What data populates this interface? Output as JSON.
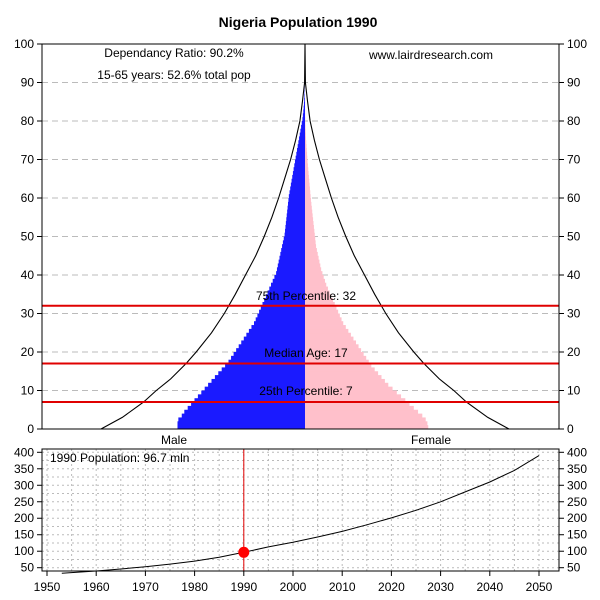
{
  "chart_data": [
    {
      "type": "bar",
      "subtype": "population-pyramid",
      "title": "Nigeria Population 1990",
      "ylim": [
        0,
        100
      ],
      "yticks": [
        0,
        10,
        20,
        30,
        40,
        50,
        60,
        70,
        80,
        90,
        100
      ],
      "xlim": [
        -1.7,
        1.7
      ],
      "grid": true,
      "colors": {
        "male": "#1a1aff",
        "female": "#ffc0cb",
        "lines": "#e00000",
        "outline": "#000000"
      },
      "annotations": {
        "dependency": "Dependancy Ratio: 90.2%",
        "working": "15-65 years: 52.6% total pop",
        "source": "www.lairdresearch.com",
        "p75": "75th Percentile: 32",
        "median": "Median Age: 17",
        "p25": "25th Percentile: 7"
      },
      "percentiles": {
        "p25": 7,
        "median": 17,
        "p75": 32
      },
      "labels": {
        "male": "Male",
        "female": "Female"
      },
      "ages": [
        0,
        1,
        2,
        3,
        4,
        5,
        6,
        7,
        8,
        9,
        10,
        11,
        12,
        13,
        14,
        15,
        16,
        17,
        18,
        19,
        20,
        21,
        22,
        23,
        24,
        25,
        26,
        27,
        28,
        29,
        30,
        31,
        32,
        33,
        34,
        35,
        36,
        37,
        38,
        39,
        40,
        41,
        42,
        43,
        44,
        45,
        46,
        47,
        48,
        49,
        50,
        51,
        52,
        53,
        54,
        55,
        56,
        57,
        58,
        59,
        60,
        61,
        62,
        63,
        64,
        65,
        66,
        67,
        68,
        69,
        70,
        71,
        72,
        73,
        74,
        75,
        76,
        77,
        78,
        79,
        80,
        81,
        82,
        83,
        84,
        85,
        86,
        87,
        88,
        89,
        90
      ],
      "male_pct": [
        1.5,
        1.5,
        1.49,
        1.45,
        1.42,
        1.38,
        1.34,
        1.3,
        1.26,
        1.22,
        1.18,
        1.14,
        1.1,
        1.06,
        1.02,
        0.98,
        0.94,
        0.9,
        0.87,
        0.84,
        0.81,
        0.78,
        0.75,
        0.72,
        0.69,
        0.66,
        0.63,
        0.6,
        0.58,
        0.56,
        0.54,
        0.52,
        0.5,
        0.48,
        0.46,
        0.44,
        0.42,
        0.4,
        0.38,
        0.36,
        0.34,
        0.33,
        0.32,
        0.31,
        0.3,
        0.29,
        0.28,
        0.27,
        0.26,
        0.25,
        0.24,
        0.235,
        0.23,
        0.225,
        0.22,
        0.215,
        0.21,
        0.205,
        0.2,
        0.195,
        0.19,
        0.182,
        0.174,
        0.166,
        0.158,
        0.15,
        0.142,
        0.134,
        0.126,
        0.118,
        0.11,
        0.102,
        0.094,
        0.086,
        0.078,
        0.07,
        0.062,
        0.054,
        0.046,
        0.038,
        0.03,
        0.025,
        0.02,
        0.016,
        0.012,
        0.009,
        0.006,
        0.004,
        0.002,
        0.001,
        0
      ],
      "female_pct": [
        1.45,
        1.44,
        1.42,
        1.38,
        1.33,
        1.28,
        1.23,
        1.18,
        1.13,
        1.08,
        1.03,
        0.98,
        0.94,
        0.9,
        0.86,
        0.82,
        0.78,
        0.75,
        0.72,
        0.69,
        0.66,
        0.63,
        0.6,
        0.57,
        0.54,
        0.51,
        0.48,
        0.45,
        0.43,
        0.41,
        0.39,
        0.37,
        0.35,
        0.33,
        0.31,
        0.29,
        0.27,
        0.25,
        0.235,
        0.22,
        0.205,
        0.19,
        0.18,
        0.17,
        0.16,
        0.15,
        0.14,
        0.13,
        0.125,
        0.12,
        0.115,
        0.11,
        0.105,
        0.1,
        0.095,
        0.09,
        0.085,
        0.08,
        0.075,
        0.07,
        0.066,
        0.062,
        0.058,
        0.054,
        0.05,
        0.046,
        0.042,
        0.038,
        0.034,
        0.03,
        0.027,
        0.024,
        0.021,
        0.018,
        0.015,
        0.012,
        0.01,
        0.008,
        0.006,
        0.004,
        0.003,
        0.002,
        0.0015,
        0.001,
        0.0008,
        0.0005,
        0.0003,
        0.0002,
        0.0001,
        0,
        0
      ],
      "outline": [
        {
          "age": 0,
          "width": 2.4
        },
        {
          "age": 3,
          "width": 2.15
        },
        {
          "age": 7,
          "width": 1.9
        },
        {
          "age": 10,
          "width": 1.75
        },
        {
          "age": 13,
          "width": 1.58
        },
        {
          "age": 17,
          "width": 1.4
        },
        {
          "age": 20,
          "width": 1.28
        },
        {
          "age": 25,
          "width": 1.1
        },
        {
          "age": 30,
          "width": 0.95
        },
        {
          "age": 35,
          "width": 0.82
        },
        {
          "age": 40,
          "width": 0.7
        },
        {
          "age": 45,
          "width": 0.58
        },
        {
          "age": 50,
          "width": 0.48
        },
        {
          "age": 55,
          "width": 0.39
        },
        {
          "age": 60,
          "width": 0.31
        },
        {
          "age": 65,
          "width": 0.24
        },
        {
          "age": 70,
          "width": 0.17
        },
        {
          "age": 75,
          "width": 0.11
        },
        {
          "age": 80,
          "width": 0.06
        },
        {
          "age": 85,
          "width": 0.03
        },
        {
          "age": 90,
          "width": 0.005
        },
        {
          "age": 100,
          "width": 0
        }
      ]
    },
    {
      "type": "line",
      "label": "1990 Population: 96.7 mln",
      "x": [
        1953,
        1960,
        1965,
        1970,
        1975,
        1980,
        1985,
        1990,
        1995,
        2000,
        2005,
        2010,
        2015,
        2020,
        2025,
        2030,
        2035,
        2040,
        2045,
        2050
      ],
      "y": [
        33,
        40,
        46,
        53,
        61,
        70,
        82,
        96.7,
        113,
        127,
        143,
        160,
        180,
        201,
        224,
        250,
        280,
        310,
        345,
        390
      ],
      "xlim": [
        1950,
        2050
      ],
      "xticks": [
        1950,
        1960,
        1970,
        1980,
        1990,
        2000,
        2010,
        2020,
        2030,
        2040,
        2050
      ],
      "ylim": [
        40,
        410
      ],
      "yticks": [
        50,
        100,
        150,
        200,
        250,
        300,
        350,
        400
      ],
      "highlight": {
        "x": 1990,
        "y": 96.7
      },
      "grid": true
    }
  ]
}
